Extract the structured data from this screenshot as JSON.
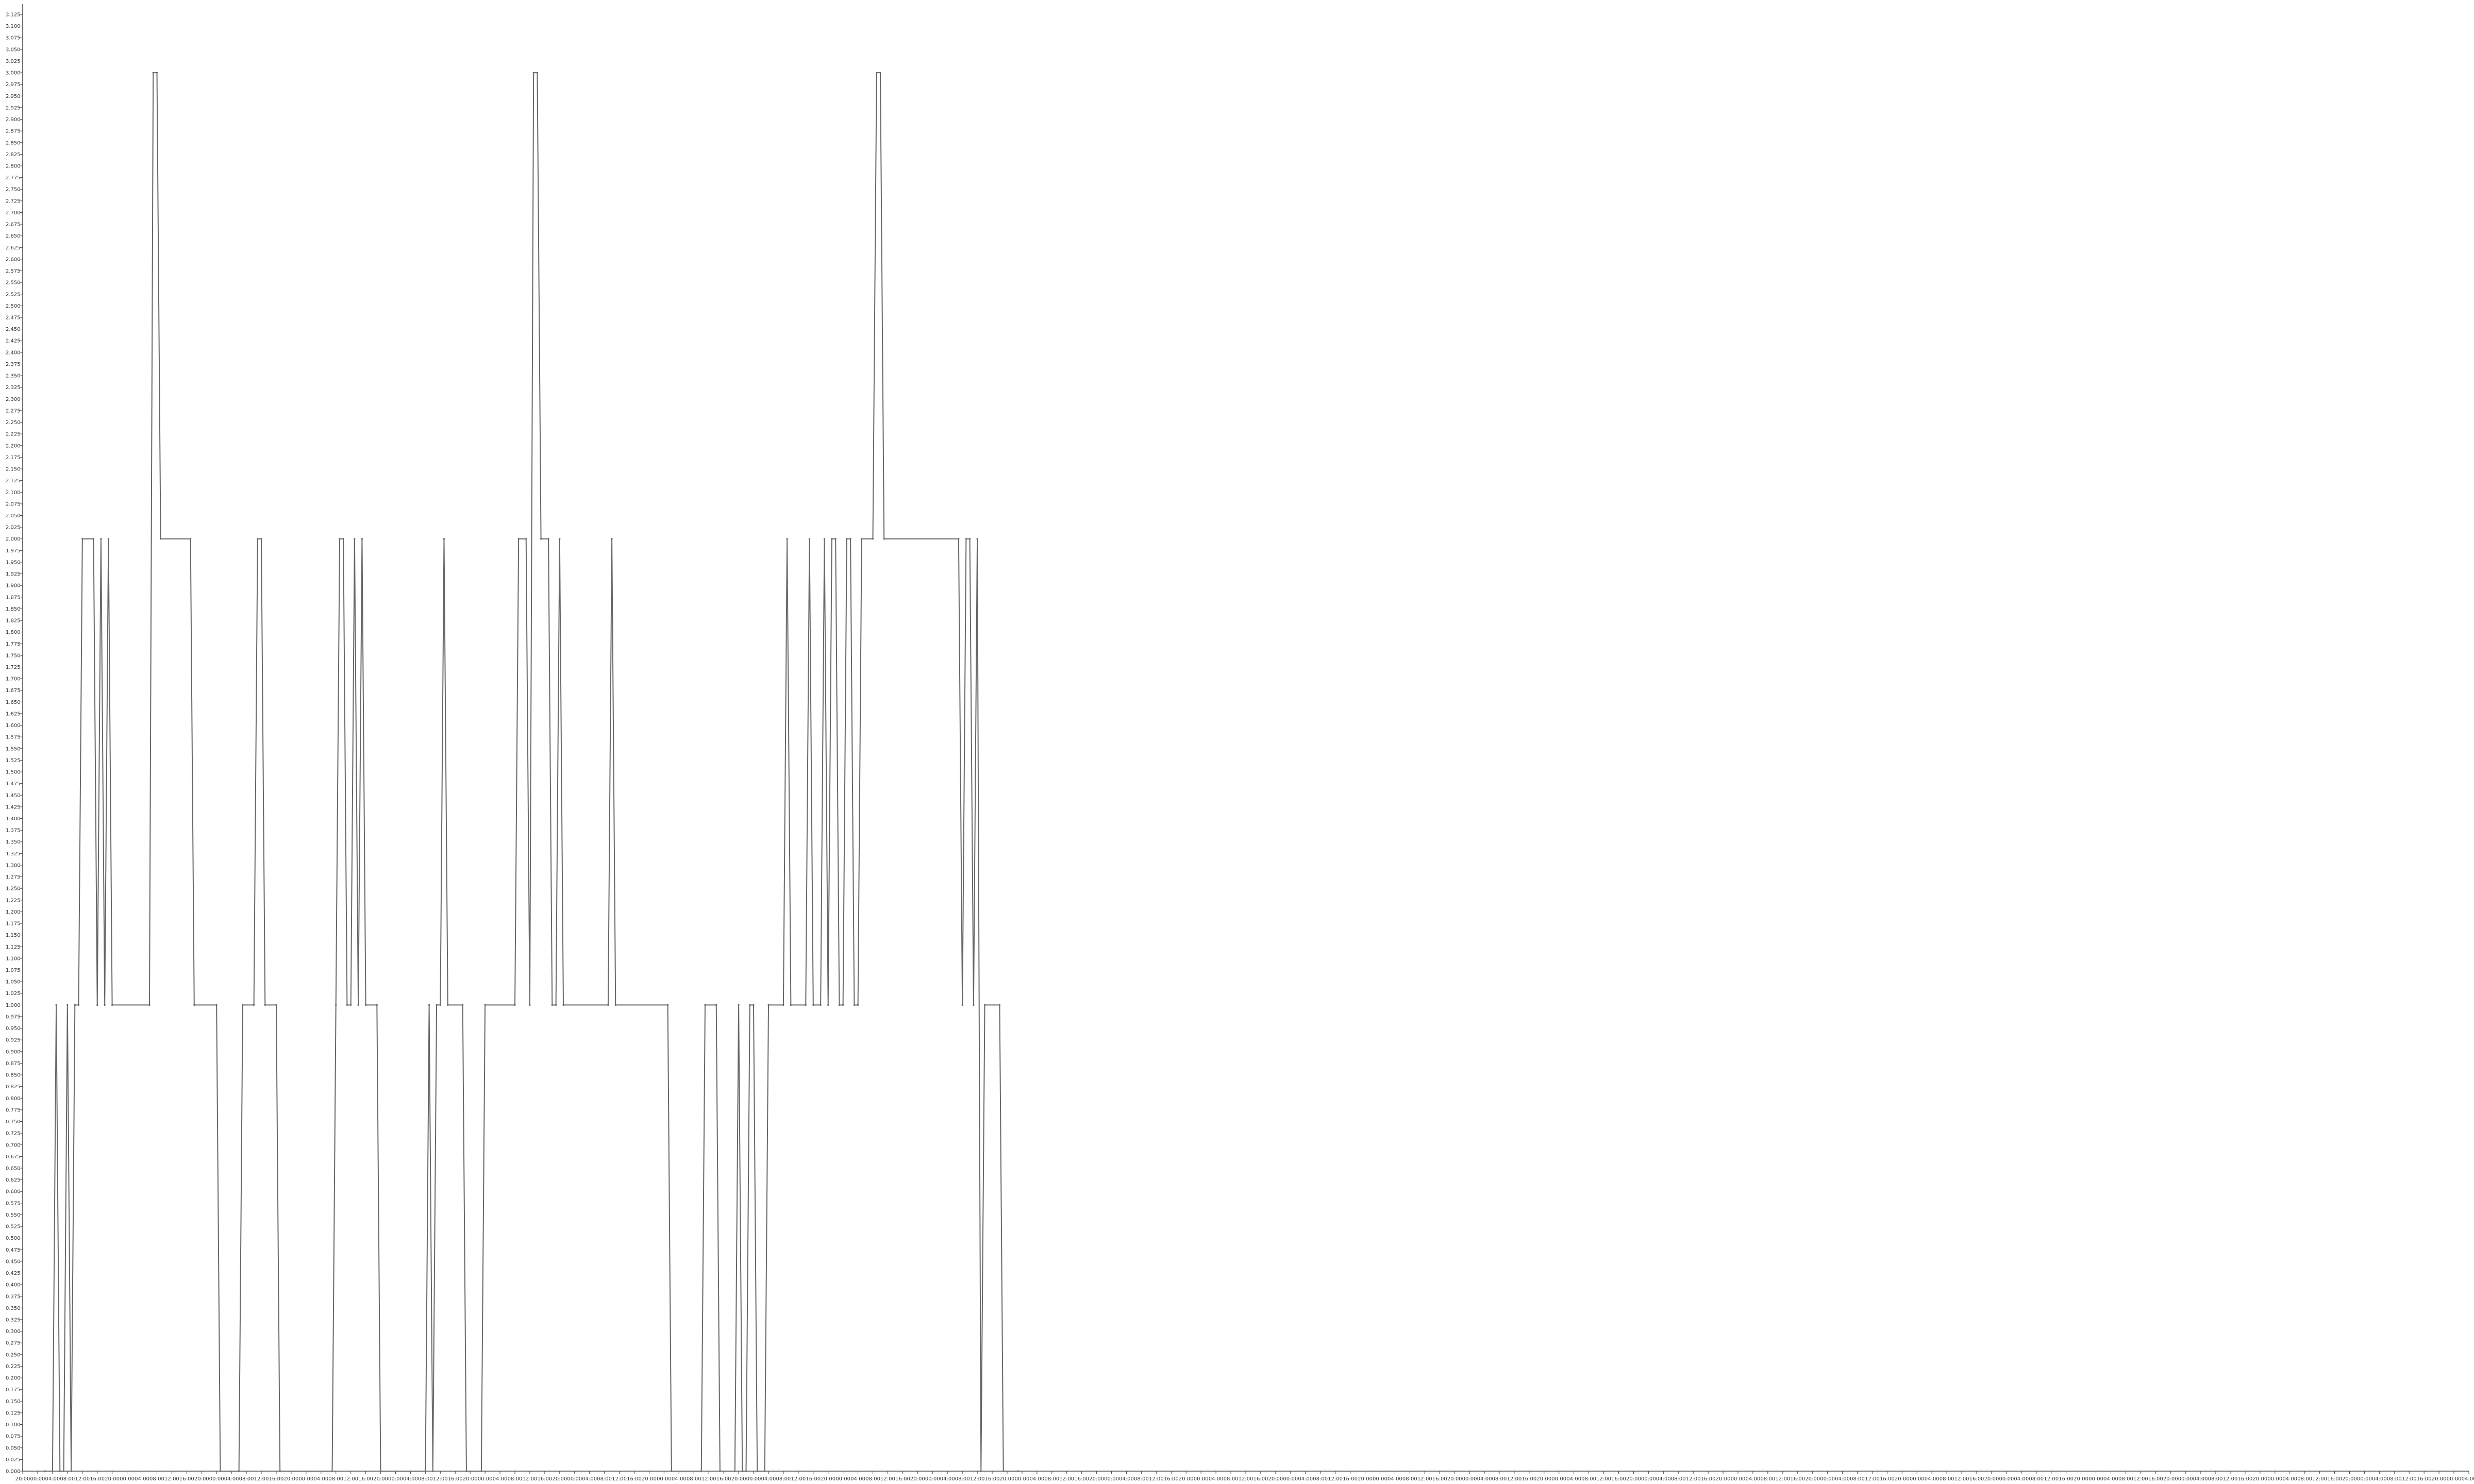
{
  "chart_data": {
    "type": "line",
    "title": "",
    "xlabel": "",
    "ylabel": "",
    "ylim": [
      0,
      3.125
    ],
    "y_tick_step": 0.025,
    "x_range": [
      "2023-01-01 20:00",
      "2023-01-29 04:00"
    ],
    "x_tick_labels": [
      "20:00",
      "00:00",
      "04:00",
      "08:00",
      "12:00",
      "16:00",
      "20:00",
      "00:00",
      "04:00",
      "08:00",
      "12:00",
      "16:00",
      "20:00",
      "00:00",
      "04:00",
      "08:00",
      "12:00",
      "16:00",
      "20:00",
      "00:00",
      "04:00",
      "08:00",
      "12:00",
      "16:00",
      "20:00",
      "00:00",
      "04:00",
      "08:00",
      "12:00",
      "16:00",
      "20:00",
      "00:00",
      "04:00",
      "08:00",
      "12:00",
      "16:00",
      "20:00",
      "00:00",
      "04:00",
      "08:00",
      "12:00",
      "16:00",
      "20:00",
      "00:00",
      "04:00",
      "08:00",
      "12:00",
      "16:00",
      "20:00",
      "00:00",
      "04:00",
      "08:00",
      "12:00",
      "16:00",
      "20:00",
      "00:00",
      "04:00",
      "08:00",
      "12:00",
      "16:00",
      "20:00",
      "00:00",
      "04:00",
      "08:00",
      "12:00",
      "16:00",
      "20:00",
      "00:00",
      "04:00",
      "08:00",
      "12:00",
      "16:00",
      "20:00",
      "00:00",
      "04:00",
      "08:00",
      "12:00",
      "16:00",
      "20:00",
      "00:00",
      "04:00",
      "08:00",
      "12:00",
      "16:00",
      "20:00",
      "00:00",
      "04:00",
      "08:00",
      "12:00",
      "16:00",
      "20:00",
      "00:00",
      "04:00",
      "08:00",
      "12:00",
      "16:00",
      "20:00",
      "00:00",
      "04:00",
      "08:00",
      "12:00",
      "16:00",
      "20:00",
      "00:00",
      "04:00",
      "08:00",
      "12:00",
      "16:00",
      "20:00",
      "00:00",
      "04:00",
      "08:00",
      "12:00",
      "16:00",
      "20:00",
      "00:00",
      "04:00",
      "08:00",
      "12:00",
      "16:00",
      "20:00",
      "00:00",
      "04:00",
      "08:00",
      "12:00",
      "16:00",
      "20:00",
      "00:00",
      "04:00",
      "08:00",
      "12:00",
      "16:00",
      "20:00",
      "00:00",
      "04:00",
      "08:00",
      "12:00",
      "16:00",
      "20:00",
      "00:00",
      "04:00",
      "08:00",
      "12:00",
      "16:00",
      "20:00",
      "00:00",
      "04:00",
      "08:00",
      "12:00",
      "16:00",
      "20:00",
      "00:00",
      "04:00",
      "08:00",
      "12:00",
      "16:00",
      "20:00",
      "00:00",
      "04:00",
      "08:00",
      "12:00",
      "16:00",
      "20:00",
      "00:00",
      "04:00"
    ],
    "grid": false,
    "legend": "none",
    "line_color": "#666666",
    "series": [
      {
        "points": [
          [
            "2023-01-02 02:00",
            0
          ],
          [
            "2023-01-02 04:00",
            0
          ],
          [
            "2023-01-02 05:00",
            1
          ],
          [
            "2023-01-02 06:00",
            0
          ],
          [
            "2023-01-02 07:00",
            0
          ],
          [
            "2023-01-02 08:00",
            1
          ],
          [
            "2023-01-02 09:00",
            0
          ],
          [
            "2023-01-02 10:00",
            1
          ],
          [
            "2023-01-02 11:00",
            1
          ],
          [
            "2023-01-02 12:00",
            2
          ],
          [
            "2023-01-02 15:00",
            2
          ],
          [
            "2023-01-02 16:00",
            1
          ],
          [
            "2023-01-02 17:00",
            2
          ],
          [
            "2023-01-02 18:00",
            1
          ],
          [
            "2023-01-02 19:00",
            2
          ],
          [
            "2023-01-02 20:00",
            1
          ],
          [
            "2023-01-03 06:00",
            1
          ],
          [
            "2023-01-03 07:00",
            3
          ],
          [
            "2023-01-03 08:00",
            3
          ],
          [
            "2023-01-03 09:00",
            2
          ],
          [
            "2023-01-03 17:00",
            2
          ],
          [
            "2023-01-03 18:00",
            1
          ],
          [
            "2023-01-04 00:00",
            1
          ],
          [
            "2023-01-04 01:00",
            0
          ],
          [
            "2023-01-04 06:00",
            0
          ],
          [
            "2023-01-04 07:00",
            1
          ],
          [
            "2023-01-04 10:00",
            1
          ],
          [
            "2023-01-04 11:00",
            2
          ],
          [
            "2023-01-04 12:00",
            2
          ],
          [
            "2023-01-04 13:00",
            1
          ],
          [
            "2023-01-04 16:00",
            1
          ],
          [
            "2023-01-04 17:00",
            0
          ],
          [
            "2023-01-05 07:00",
            0
          ],
          [
            "2023-01-05 08:00",
            1
          ],
          [
            "2023-01-05 09:00",
            2
          ],
          [
            "2023-01-05 10:00",
            2
          ],
          [
            "2023-01-05 11:00",
            1
          ],
          [
            "2023-01-05 12:00",
            1
          ],
          [
            "2023-01-05 13:00",
            2
          ],
          [
            "2023-01-05 14:00",
            1
          ],
          [
            "2023-01-05 15:00",
            2
          ],
          [
            "2023-01-05 16:00",
            1
          ],
          [
            "2023-01-05 19:00",
            1
          ],
          [
            "2023-01-05 20:00",
            0
          ],
          [
            "2023-01-06 08:00",
            0
          ],
          [
            "2023-01-06 09:00",
            1
          ],
          [
            "2023-01-06 10:00",
            0
          ],
          [
            "2023-01-06 11:00",
            1
          ],
          [
            "2023-01-06 12:00",
            1
          ],
          [
            "2023-01-06 13:00",
            2
          ],
          [
            "2023-01-06 14:00",
            1
          ],
          [
            "2023-01-06 18:00",
            1
          ],
          [
            "2023-01-06 19:00",
            0
          ],
          [
            "2023-01-06 23:00",
            0
          ],
          [
            "2023-01-07 00:00",
            1
          ],
          [
            "2023-01-07 08:00",
            1
          ],
          [
            "2023-01-07 09:00",
            2
          ],
          [
            "2023-01-07 11:00",
            2
          ],
          [
            "2023-01-07 12:00",
            1
          ],
          [
            "2023-01-07 13:00",
            3
          ],
          [
            "2023-01-07 14:00",
            3
          ],
          [
            "2023-01-07 15:00",
            2
          ],
          [
            "2023-01-07 17:00",
            2
          ],
          [
            "2023-01-07 18:00",
            1
          ],
          [
            "2023-01-07 19:00",
            1
          ],
          [
            "2023-01-07 20:00",
            2
          ],
          [
            "2023-01-07 21:00",
            1
          ],
          [
            "2023-01-08 09:00",
            1
          ],
          [
            "2023-01-08 10:00",
            2
          ],
          [
            "2023-01-08 11:00",
            1
          ],
          [
            "2023-01-09 01:00",
            1
          ],
          [
            "2023-01-09 02:00",
            0
          ],
          [
            "2023-01-09 10:00",
            0
          ],
          [
            "2023-01-09 11:00",
            1
          ],
          [
            "2023-01-09 14:00",
            1
          ],
          [
            "2023-01-09 15:00",
            0
          ],
          [
            "2023-01-09 19:00",
            0
          ],
          [
            "2023-01-09 20:00",
            1
          ],
          [
            "2023-01-09 21:00",
            0
          ],
          [
            "2023-01-09 22:00",
            0
          ],
          [
            "2023-01-09 23:00",
            1
          ],
          [
            "2023-01-10 00:00",
            1
          ],
          [
            "2023-01-10 01:00",
            0
          ],
          [
            "2023-01-10 03:00",
            0
          ],
          [
            "2023-01-10 04:00",
            1
          ],
          [
            "2023-01-10 08:00",
            1
          ],
          [
            "2023-01-10 09:00",
            2
          ],
          [
            "2023-01-10 10:00",
            1
          ],
          [
            "2023-01-10 14:00",
            1
          ],
          [
            "2023-01-10 15:00",
            2
          ],
          [
            "2023-01-10 16:00",
            1
          ],
          [
            "2023-01-10 18:00",
            1
          ],
          [
            "2023-01-10 19:00",
            2
          ],
          [
            "2023-01-10 20:00",
            1
          ],
          [
            "2023-01-10 21:00",
            2
          ],
          [
            "2023-01-10 22:00",
            2
          ],
          [
            "2023-01-10 23:00",
            1
          ],
          [
            "2023-01-11 00:00",
            1
          ],
          [
            "2023-01-11 01:00",
            2
          ],
          [
            "2023-01-11 02:00",
            2
          ],
          [
            "2023-01-11 03:00",
            1
          ],
          [
            "2023-01-11 04:00",
            1
          ],
          [
            "2023-01-11 05:00",
            2
          ],
          [
            "2023-01-11 08:00",
            2
          ],
          [
            "2023-01-11 09:00",
            3
          ],
          [
            "2023-01-11 10:00",
            3
          ],
          [
            "2023-01-11 11:00",
            2
          ],
          [
            "2023-01-12 07:00",
            2
          ],
          [
            "2023-01-12 08:00",
            1
          ],
          [
            "2023-01-12 09:00",
            2
          ],
          [
            "2023-01-12 10:00",
            2
          ],
          [
            "2023-01-12 11:00",
            1
          ],
          [
            "2023-01-12 12:00",
            2
          ],
          [
            "2023-01-12 13:00",
            0
          ],
          [
            "2023-01-12 14:00",
            1
          ],
          [
            "2023-01-12 18:00",
            1
          ],
          [
            "2023-01-12 19:00",
            0
          ],
          [
            "2023-01-12 23:00",
            0
          ]
        ]
      }
    ]
  }
}
